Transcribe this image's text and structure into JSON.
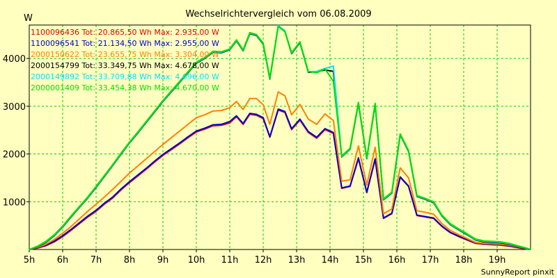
{
  "chart_data": {
    "type": "line",
    "title": "Wechselrichtervergleich vom 06.08.2009",
    "ylabel": "W",
    "xlabel": "",
    "footer": "SunnyReport pinxit",
    "ylim": [
      0,
      4700
    ],
    "y_ticks": [
      1000,
      2000,
      3000,
      4000
    ],
    "x_range": [
      5.0,
      20.0
    ],
    "x_ticks": [
      {
        "value": 5,
        "label": "5h"
      },
      {
        "value": 6,
        "label": "6h"
      },
      {
        "value": 7,
        "label": "7h"
      },
      {
        "value": 8,
        "label": "8h"
      },
      {
        "value": 9,
        "label": "9h"
      },
      {
        "value": 10,
        "label": "10h"
      },
      {
        "value": 11,
        "label": "11h"
      },
      {
        "value": 12,
        "label": "12h"
      },
      {
        "value": 13,
        "label": "13h"
      },
      {
        "value": 14,
        "label": "14h"
      },
      {
        "value": 15,
        "label": "15h"
      },
      {
        "value": 16,
        "label": "16h"
      },
      {
        "value": 17,
        "label": "17h"
      },
      {
        "value": 18,
        "label": "18h"
      },
      {
        "value": 19,
        "label": "19h"
      }
    ],
    "grid": true,
    "legend_position": "top-left",
    "background_color": "#ffffc0",
    "grid_color": "#00cc00",
    "x": [
      5.0,
      5.25,
      5.5,
      5.75,
      6.0,
      6.25,
      6.5,
      6.75,
      7.0,
      7.25,
      7.5,
      7.75,
      8.0,
      8.25,
      8.5,
      8.75,
      9.0,
      9.25,
      9.5,
      9.75,
      10.0,
      10.25,
      10.5,
      10.75,
      11.0,
      11.2,
      11.4,
      11.6,
      11.8,
      12.0,
      12.2,
      12.45,
      12.65,
      12.85,
      13.1,
      13.35,
      13.6,
      13.85,
      14.1,
      14.35,
      14.6,
      14.85,
      15.1,
      15.35,
      15.6,
      15.85,
      16.1,
      16.35,
      16.6,
      16.85,
      17.1,
      17.35,
      17.6,
      17.85,
      18.1,
      18.35,
      18.6,
      18.85,
      19.1,
      19.35,
      19.6,
      19.85,
      20.0
    ],
    "series": [
      {
        "name": "1100096436",
        "tot": "20.865,50",
        "max": "2.935,00",
        "legend": "1100096436 Tot: 20.865,50 Wh Max: 2.935,00 W",
        "color": "#e00000",
        "values": [
          0,
          30,
          80,
          160,
          270,
          400,
          540,
          680,
          800,
          950,
          1080,
          1250,
          1400,
          1540,
          1680,
          1830,
          1970,
          2090,
          2210,
          2340,
          2460,
          2520,
          2590,
          2600,
          2650,
          2780,
          2620,
          2830,
          2810,
          2740,
          2350,
          2920,
          2870,
          2510,
          2710,
          2450,
          2330,
          2510,
          2430,
          1280,
          1320,
          1900,
          1190,
          1880,
          650,
          750,
          1510,
          1320,
          710,
          680,
          650,
          480,
          350,
          270,
          200,
          130,
          110,
          100,
          90,
          70,
          40,
          10,
          0
        ]
      },
      {
        "name": "1100096541",
        "tot": "21.134,50",
        "max": "2.955,00",
        "legend": "1100096541 Tot: 21.134,50 Wh Max: 2.955,00 W",
        "color": "#0000d0",
        "values": [
          0,
          35,
          90,
          175,
          290,
          420,
          560,
          700,
          820,
          970,
          1100,
          1270,
          1420,
          1560,
          1700,
          1850,
          1990,
          2110,
          2230,
          2360,
          2480,
          2540,
          2610,
          2620,
          2680,
          2800,
          2640,
          2850,
          2830,
          2760,
          2360,
          2940,
          2890,
          2530,
          2730,
          2470,
          2350,
          2530,
          2450,
          1290,
          1330,
          1920,
          1200,
          1900,
          660,
          760,
          1520,
          1330,
          720,
          690,
          660,
          490,
          360,
          280,
          210,
          140,
          120,
          110,
          100,
          80,
          50,
          15,
          0
        ]
      },
      {
        "name": "2000150622",
        "tot": "23.655,75",
        "max": "3.304,00",
        "legend": "2000150622 Tot: 23.655,75 Wh Max: 3.304,00 W",
        "color": "#ff8000",
        "values": [
          0,
          45,
          110,
          210,
          340,
          480,
          640,
          800,
          950,
          1100,
          1260,
          1430,
          1600,
          1750,
          1900,
          2050,
          2200,
          2340,
          2480,
          2620,
          2760,
          2820,
          2900,
          2910,
          2970,
          3100,
          2930,
          3160,
          3160,
          3030,
          2620,
          3300,
          3220,
          2820,
          3040,
          2730,
          2620,
          2840,
          2700,
          1430,
          1460,
          2170,
          1350,
          2140,
          750,
          850,
          1710,
          1500,
          810,
          780,
          740,
          540,
          400,
          310,
          230,
          150,
          130,
          120,
          110,
          90,
          60,
          20,
          0
        ]
      },
      {
        "name": "2000154799",
        "tot": "33.349,75",
        "max": "4.678,00",
        "legend": "2000154799 Tot: 33.349,75 Wh Max: 4.678,00 W",
        "color": "#000000",
        "values": [
          0,
          60,
          150,
          290,
          470,
          680,
          880,
          1080,
          1300,
          1530,
          1760,
          2000,
          2230,
          2440,
          2660,
          2880,
          3100,
          3300,
          3500,
          3700,
          3900,
          4000,
          4130,
          4120,
          4180,
          4370,
          4160,
          4520,
          4480,
          4300,
          3570,
          4680,
          4570,
          4100,
          4330,
          3710,
          3720,
          3760,
          3730,
          1940,
          2100,
          3060,
          1900,
          3040,
          1040,
          1180,
          2400,
          2050,
          1110,
          1050,
          980,
          700,
          520,
          410,
          310,
          200,
          160,
          150,
          140,
          110,
          70,
          25,
          0
        ]
      },
      {
        "name": "2000149892",
        "tot": "33.709,88",
        "max": "4.696,00",
        "legend": "2000149892 Tot: 33.709,88 Wh Max: 4.696,00 W",
        "color": "#00e0ff",
        "values": [
          0,
          65,
          160,
          300,
          480,
          690,
          890,
          1090,
          1310,
          1540,
          1770,
          2010,
          2240,
          2450,
          2670,
          2890,
          3110,
          3310,
          3510,
          3710,
          3910,
          4010,
          4140,
          4130,
          4190,
          4380,
          4170,
          4530,
          4490,
          4310,
          3580,
          4690,
          4580,
          4110,
          4340,
          3720,
          3730,
          3790,
          3840,
          1950,
          2110,
          3070,
          1910,
          3050,
          1050,
          1190,
          2410,
          2060,
          1120,
          1060,
          990,
          710,
          530,
          420,
          320,
          210,
          170,
          160,
          150,
          120,
          75,
          30,
          0
        ]
      },
      {
        "name": "2000001409",
        "tot": "33.454,38",
        "max": "4.670,00",
        "legend": "2000001409 Tot: 33.454,38 Wh Max: 4.670,00 W",
        "color": "#00e000",
        "values": [
          0,
          70,
          170,
          310,
          490,
          700,
          900,
          1100,
          1320,
          1550,
          1780,
          2020,
          2250,
          2460,
          2680,
          2900,
          3120,
          3320,
          3520,
          3720,
          3920,
          4020,
          4150,
          4140,
          4200,
          4390,
          4180,
          4540,
          4500,
          4320,
          3590,
          4670,
          4560,
          4120,
          4350,
          3730,
          3700,
          3780,
          3520,
          1960,
          2120,
          3080,
          1920,
          3060,
          1060,
          1200,
          2420,
          2070,
          1130,
          1070,
          1000,
          720,
          540,
          430,
          330,
          220,
          180,
          170,
          160,
          130,
          80,
          35,
          0
        ]
      }
    ]
  }
}
